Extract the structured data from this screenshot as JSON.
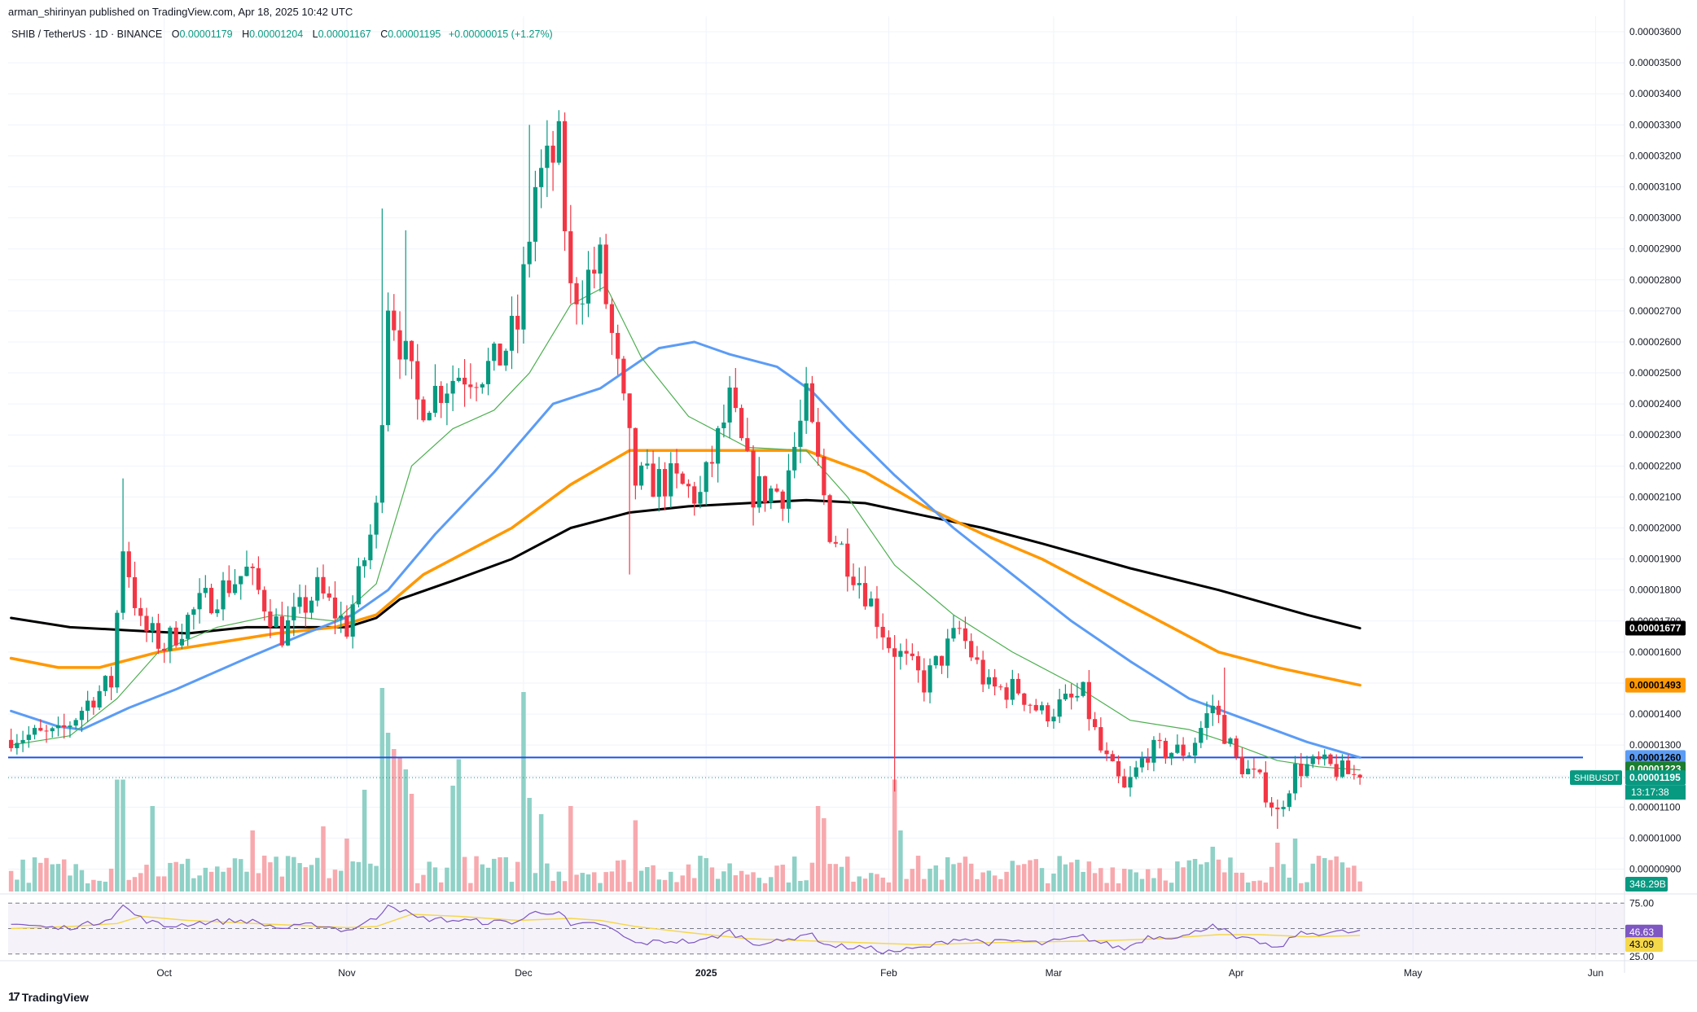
{
  "header": {
    "published": "arman_shirinyan published on TradingView.com, Apr 18, 2025 10:42 UTC",
    "pair": "SHIB / TetherUS · 1D · BINANCE",
    "open_label": "O",
    "open": "0.00001179",
    "high_label": "H",
    "high": "0.00001204",
    "low_label": "L",
    "low": "0.00001167",
    "close_label": "C",
    "close": "0.00001195",
    "change": "+0.00000015 (+1.27%)"
  },
  "footer": {
    "logo_mark": "17",
    "logo_text": "TradingView"
  },
  "colors": {
    "up": "#089981",
    "down": "#f23645",
    "vol_up": "#8fd1c6",
    "vol_down": "#f7a9ae",
    "ma_short": "#4caf50",
    "ma_mid": "#5b9cf6",
    "ma_long": "#ff9800",
    "ma_200": "#000000",
    "hline": "#1e53e5",
    "rsi": "#7e57c2",
    "rsi_ma": "#f5d74a"
  },
  "chart_data": {
    "type": "candlestick",
    "symbol": "SHIBUSDT",
    "ylim": [
      8.2e-06,
      3.65e-05
    ],
    "y_ticks": [
      "0.00000900",
      "0.00001000",
      "0.00001100",
      "0.00001200",
      "0.00001300",
      "0.00001400",
      "0.00001500",
      "0.00001600",
      "0.00001700",
      "0.00001800",
      "0.00001900",
      "0.00002000",
      "0.00002100",
      "0.00002200",
      "0.00002300",
      "0.00002400",
      "0.00002500",
      "0.00002600",
      "0.00002700",
      "0.00002800",
      "0.00002900",
      "0.00003000",
      "0.00003100",
      "0.00003200",
      "0.00003300",
      "0.00003400",
      "0.00003500",
      "0.00003600"
    ],
    "x_ticks": [
      {
        "label": "Oct",
        "idx": 26
      },
      {
        "label": "Nov",
        "idx": 57
      },
      {
        "label": "Dec",
        "idx": 87
      },
      {
        "label": "2025",
        "idx": 118
      },
      {
        "label": "Feb",
        "idx": 149
      },
      {
        "label": "Mar",
        "idx": 177
      },
      {
        "label": "Apr",
        "idx": 208
      },
      {
        "label": "May",
        "idx": 238
      },
      {
        "label": "Jun",
        "idx": 269
      }
    ],
    "total_slots": 274,
    "candle_count": 230,
    "anchors": [
      {
        "i": 0,
        "c": 1.33e-05
      },
      {
        "i": 8,
        "c": 1.33e-05
      },
      {
        "i": 14,
        "c": 1.46e-05
      },
      {
        "i": 17,
        "c": 1.5e-05
      },
      {
        "i": 19,
        "c": 1.95e-05
      },
      {
        "i": 22,
        "c": 1.68e-05
      },
      {
        "i": 26,
        "c": 1.62e-05
      },
      {
        "i": 32,
        "c": 1.75e-05
      },
      {
        "i": 40,
        "c": 1.86e-05
      },
      {
        "i": 46,
        "c": 1.66e-05
      },
      {
        "i": 52,
        "c": 1.8e-05
      },
      {
        "i": 57,
        "c": 1.68e-05
      },
      {
        "i": 62,
        "c": 2.05e-05
      },
      {
        "i": 64,
        "c": 2.75e-05
      },
      {
        "i": 69,
        "c": 2.4e-05
      },
      {
        "i": 76,
        "c": 2.5e-05
      },
      {
        "i": 82,
        "c": 2.52e-05
      },
      {
        "i": 86,
        "c": 2.65e-05
      },
      {
        "i": 89,
        "c": 3.1e-05
      },
      {
        "i": 93,
        "c": 3.22e-05
      },
      {
        "i": 95,
        "c": 2.75e-05
      },
      {
        "i": 100,
        "c": 2.85e-05
      },
      {
        "i": 104,
        "c": 2.38e-05
      },
      {
        "i": 106,
        "c": 2.15e-05
      },
      {
        "i": 112,
        "c": 2.15e-05
      },
      {
        "i": 117,
        "c": 2.1e-05
      },
      {
        "i": 122,
        "c": 2.4e-05
      },
      {
        "i": 126,
        "c": 2.12e-05
      },
      {
        "i": 131,
        "c": 2.12e-05
      },
      {
        "i": 135,
        "c": 2.4e-05
      },
      {
        "i": 139,
        "c": 2e-05
      },
      {
        "i": 145,
        "c": 1.8e-05
      },
      {
        "i": 149,
        "c": 1.63e-05
      },
      {
        "i": 155,
        "c": 1.5e-05
      },
      {
        "i": 161,
        "c": 1.67e-05
      },
      {
        "i": 166,
        "c": 1.48e-05
      },
      {
        "i": 171,
        "c": 1.48e-05
      },
      {
        "i": 175,
        "c": 1.4e-05
      },
      {
        "i": 182,
        "c": 1.46e-05
      },
      {
        "i": 185,
        "c": 1.28e-05
      },
      {
        "i": 189,
        "c": 1.15e-05
      },
      {
        "i": 193,
        "c": 1.28e-05
      },
      {
        "i": 200,
        "c": 1.28e-05
      },
      {
        "i": 204,
        "c": 1.43e-05
      },
      {
        "i": 208,
        "c": 1.25e-05
      },
      {
        "i": 212,
        "c": 1.18e-05
      },
      {
        "i": 215,
        "c": 1.08e-05
      },
      {
        "i": 218,
        "c": 1.22e-05
      },
      {
        "i": 222,
        "c": 1.24e-05
      },
      {
        "i": 229,
        "c": 1.195e-05
      }
    ],
    "wicks": [
      {
        "i": 19,
        "h": 2.16e-05
      },
      {
        "i": 63,
        "h": 3.03e-05
      },
      {
        "i": 67,
        "h": 2.96e-05
      },
      {
        "i": 88,
        "h": 3.3e-05
      },
      {
        "i": 94,
        "h": 3.34e-05
      },
      {
        "i": 105,
        "l": 1.85e-05
      },
      {
        "i": 122,
        "h": 2.49e-05
      },
      {
        "i": 136,
        "h": 2.49e-05
      },
      {
        "i": 150,
        "l": 1.15e-05
      },
      {
        "i": 206,
        "h": 1.55e-05
      },
      {
        "i": 215,
        "l": 1.03e-05
      }
    ],
    "ma_series": [
      {
        "key": "ma_200",
        "width": 3,
        "points": [
          [
            0,
            1.71e-05
          ],
          [
            10,
            1.68e-05
          ],
          [
            20,
            1.67e-05
          ],
          [
            30,
            1.66e-05
          ],
          [
            40,
            1.68e-05
          ],
          [
            50,
            1.68e-05
          ],
          [
            57,
            1.68e-05
          ],
          [
            62,
            1.71e-05
          ],
          [
            66,
            1.77e-05
          ],
          [
            75,
            1.83e-05
          ],
          [
            85,
            1.9e-05
          ],
          [
            95,
            2e-05
          ],
          [
            105,
            2.05e-05
          ],
          [
            115,
            2.07e-05
          ],
          [
            125,
            2.08e-05
          ],
          [
            135,
            2.09e-05
          ],
          [
            145,
            2.08e-05
          ],
          [
            155,
            2.04e-05
          ],
          [
            165,
            2e-05
          ],
          [
            175,
            1.95e-05
          ],
          [
            190,
            1.87e-05
          ],
          [
            205,
            1.8e-05
          ],
          [
            220,
            1.72e-05
          ],
          [
            229,
            1.677e-05
          ]
        ]
      },
      {
        "key": "ma_long",
        "width": 3.5,
        "points": [
          [
            0,
            1.58e-05
          ],
          [
            8,
            1.55e-05
          ],
          [
            15,
            1.55e-05
          ],
          [
            25,
            1.6e-05
          ],
          [
            35,
            1.63e-05
          ],
          [
            45,
            1.66e-05
          ],
          [
            55,
            1.68e-05
          ],
          [
            62,
            1.72e-05
          ],
          [
            70,
            1.85e-05
          ],
          [
            80,
            1.95e-05
          ],
          [
            85,
            2e-05
          ],
          [
            95,
            2.14e-05
          ],
          [
            105,
            2.25e-05
          ],
          [
            115,
            2.25e-05
          ],
          [
            125,
            2.25e-05
          ],
          [
            135,
            2.25e-05
          ],
          [
            145,
            2.18e-05
          ],
          [
            155,
            2.07e-05
          ],
          [
            165,
            1.98e-05
          ],
          [
            175,
            1.9e-05
          ],
          [
            185,
            1.8e-05
          ],
          [
            195,
            1.7e-05
          ],
          [
            205,
            1.6e-05
          ],
          [
            215,
            1.55e-05
          ],
          [
            229,
            1.493e-05
          ]
        ]
      },
      {
        "key": "ma_mid",
        "width": 3,
        "points": [
          [
            0,
            1.41e-05
          ],
          [
            8,
            1.36e-05
          ],
          [
            12,
            1.35e-05
          ],
          [
            20,
            1.42e-05
          ],
          [
            28,
            1.48e-05
          ],
          [
            40,
            1.58e-05
          ],
          [
            50,
            1.66e-05
          ],
          [
            58,
            1.72e-05
          ],
          [
            64,
            1.8e-05
          ],
          [
            72,
            1.98e-05
          ],
          [
            82,
            2.18e-05
          ],
          [
            92,
            2.4e-05
          ],
          [
            100,
            2.45e-05
          ],
          [
            110,
            2.58e-05
          ],
          [
            116,
            2.6e-05
          ],
          [
            122,
            2.56e-05
          ],
          [
            130,
            2.52e-05
          ],
          [
            136,
            2.44e-05
          ],
          [
            142,
            2.32e-05
          ],
          [
            150,
            2.17e-05
          ],
          [
            160,
            2e-05
          ],
          [
            170,
            1.85e-05
          ],
          [
            180,
            1.7e-05
          ],
          [
            190,
            1.57e-05
          ],
          [
            200,
            1.45e-05
          ],
          [
            210,
            1.38e-05
          ],
          [
            220,
            1.31e-05
          ],
          [
            229,
            1.26e-05
          ]
        ]
      },
      {
        "key": "ma_short",
        "width": 1.2,
        "points": [
          [
            0,
            1.3e-05
          ],
          [
            10,
            1.33e-05
          ],
          [
            18,
            1.45e-05
          ],
          [
            25,
            1.6e-05
          ],
          [
            35,
            1.68e-05
          ],
          [
            45,
            1.72e-05
          ],
          [
            55,
            1.7e-05
          ],
          [
            62,
            1.82e-05
          ],
          [
            68,
            2.2e-05
          ],
          [
            75,
            2.32e-05
          ],
          [
            82,
            2.38e-05
          ],
          [
            88,
            2.5e-05
          ],
          [
            95,
            2.72e-05
          ],
          [
            101,
            2.78e-05
          ],
          [
            107,
            2.55e-05
          ],
          [
            115,
            2.36e-05
          ],
          [
            125,
            2.26e-05
          ],
          [
            135,
            2.25e-05
          ],
          [
            142,
            2.1e-05
          ],
          [
            150,
            1.88e-05
          ],
          [
            160,
            1.72e-05
          ],
          [
            170,
            1.6e-05
          ],
          [
            180,
            1.5e-05
          ],
          [
            190,
            1.38e-05
          ],
          [
            200,
            1.35e-05
          ],
          [
            208,
            1.3e-05
          ],
          [
            215,
            1.25e-05
          ],
          [
            222,
            1.23e-05
          ],
          [
            229,
            1.22e-05
          ]
        ]
      }
    ],
    "horizontal_line": 1.26e-05,
    "price_labels": [
      {
        "text": "0.00001677",
        "y": 1.677e-05,
        "bg": "#000000",
        "fg": "#ffffff"
      },
      {
        "text": "0.00001493",
        "y": 1.493e-05,
        "bg": "#ff9800",
        "fg": "#000000"
      },
      {
        "text": "0.00001260",
        "y": 1.26e-05,
        "bg": "#5b9cf6",
        "fg": "#000000"
      },
      {
        "text": "0.00001223",
        "y": 1.223e-05,
        "bg": "#1b7d2e",
        "fg": "#ffffff"
      },
      {
        "text": "0.00001195",
        "y": 1.195e-05,
        "bg": "#089981",
        "fg": "#ffffff"
      }
    ],
    "current_price_countdown": "13:17:38",
    "volume_label": "348.29B",
    "volume_spikes": [
      {
        "i": 18,
        "v": 0.55
      },
      {
        "i": 19,
        "v": 0.55
      },
      {
        "i": 24,
        "v": 0.42
      },
      {
        "i": 41,
        "v": 0.3
      },
      {
        "i": 53,
        "v": 0.32
      },
      {
        "i": 57,
        "v": 0.26
      },
      {
        "i": 60,
        "v": 0.5
      },
      {
        "i": 63,
        "v": 1.0
      },
      {
        "i": 64,
        "v": 0.78
      },
      {
        "i": 65,
        "v": 0.7
      },
      {
        "i": 66,
        "v": 0.66
      },
      {
        "i": 67,
        "v": 0.6
      },
      {
        "i": 68,
        "v": 0.48
      },
      {
        "i": 75,
        "v": 0.52
      },
      {
        "i": 76,
        "v": 0.65
      },
      {
        "i": 87,
        "v": 0.98
      },
      {
        "i": 88,
        "v": 0.46
      },
      {
        "i": 90,
        "v": 0.38
      },
      {
        "i": 95,
        "v": 0.42
      },
      {
        "i": 106,
        "v": 0.35
      },
      {
        "i": 137,
        "v": 0.42
      },
      {
        "i": 138,
        "v": 0.36
      },
      {
        "i": 150,
        "v": 0.55
      },
      {
        "i": 151,
        "v": 0.3
      },
      {
        "i": 204,
        "v": 0.22
      },
      {
        "i": 218,
        "v": 0.26
      },
      {
        "i": 215,
        "v": 0.24
      }
    ],
    "rsi": {
      "levels": [
        "75.00",
        "25.00"
      ],
      "value_label": "46.63",
      "ma_label": "43.09",
      "ylim": [
        20,
        80
      ],
      "points": [
        [
          0,
          55
        ],
        [
          8,
          50
        ],
        [
          14,
          55
        ],
        [
          17,
          62
        ],
        [
          19,
          72
        ],
        [
          22,
          60
        ],
        [
          26,
          52
        ],
        [
          32,
          56
        ],
        [
          40,
          58
        ],
        [
          46,
          50
        ],
        [
          52,
          54
        ],
        [
          57,
          48
        ],
        [
          62,
          60
        ],
        [
          64,
          75
        ],
        [
          69,
          60
        ],
        [
          76,
          58
        ],
        [
          82,
          56
        ],
        [
          86,
          57
        ],
        [
          89,
          66
        ],
        [
          93,
          67
        ],
        [
          95,
          52
        ],
        [
          100,
          55
        ],
        [
          104,
          42
        ],
        [
          106,
          35
        ],
        [
          112,
          38
        ],
        [
          117,
          37
        ],
        [
          122,
          47
        ],
        [
          126,
          36
        ],
        [
          131,
          37
        ],
        [
          135,
          46
        ],
        [
          139,
          33
        ],
        [
          145,
          31
        ],
        [
          149,
          27
        ],
        [
          155,
          31
        ],
        [
          161,
          41
        ],
        [
          166,
          36
        ],
        [
          171,
          38
        ],
        [
          175,
          35
        ],
        [
          182,
          42
        ],
        [
          185,
          36
        ],
        [
          189,
          30
        ],
        [
          193,
          42
        ],
        [
          200,
          43
        ],
        [
          204,
          55
        ],
        [
          208,
          40
        ],
        [
          212,
          37
        ],
        [
          215,
          29
        ],
        [
          218,
          44
        ],
        [
          222,
          46
        ],
        [
          229,
          46.6
        ]
      ],
      "ma_points": [
        [
          0,
          50
        ],
        [
          10,
          52
        ],
        [
          18,
          55
        ],
        [
          22,
          62
        ],
        [
          30,
          58
        ],
        [
          45,
          54
        ],
        [
          57,
          51
        ],
        [
          62,
          52
        ],
        [
          68,
          64
        ],
        [
          76,
          62
        ],
        [
          86,
          58
        ],
        [
          95,
          60
        ],
        [
          100,
          58
        ],
        [
          106,
          52
        ],
        [
          115,
          46
        ],
        [
          125,
          40
        ],
        [
          135,
          38
        ],
        [
          145,
          36
        ],
        [
          155,
          34
        ],
        [
          165,
          36
        ],
        [
          175,
          37
        ],
        [
          185,
          38
        ],
        [
          195,
          40
        ],
        [
          205,
          44
        ],
        [
          212,
          44
        ],
        [
          220,
          42
        ],
        [
          229,
          43.1
        ]
      ]
    }
  }
}
